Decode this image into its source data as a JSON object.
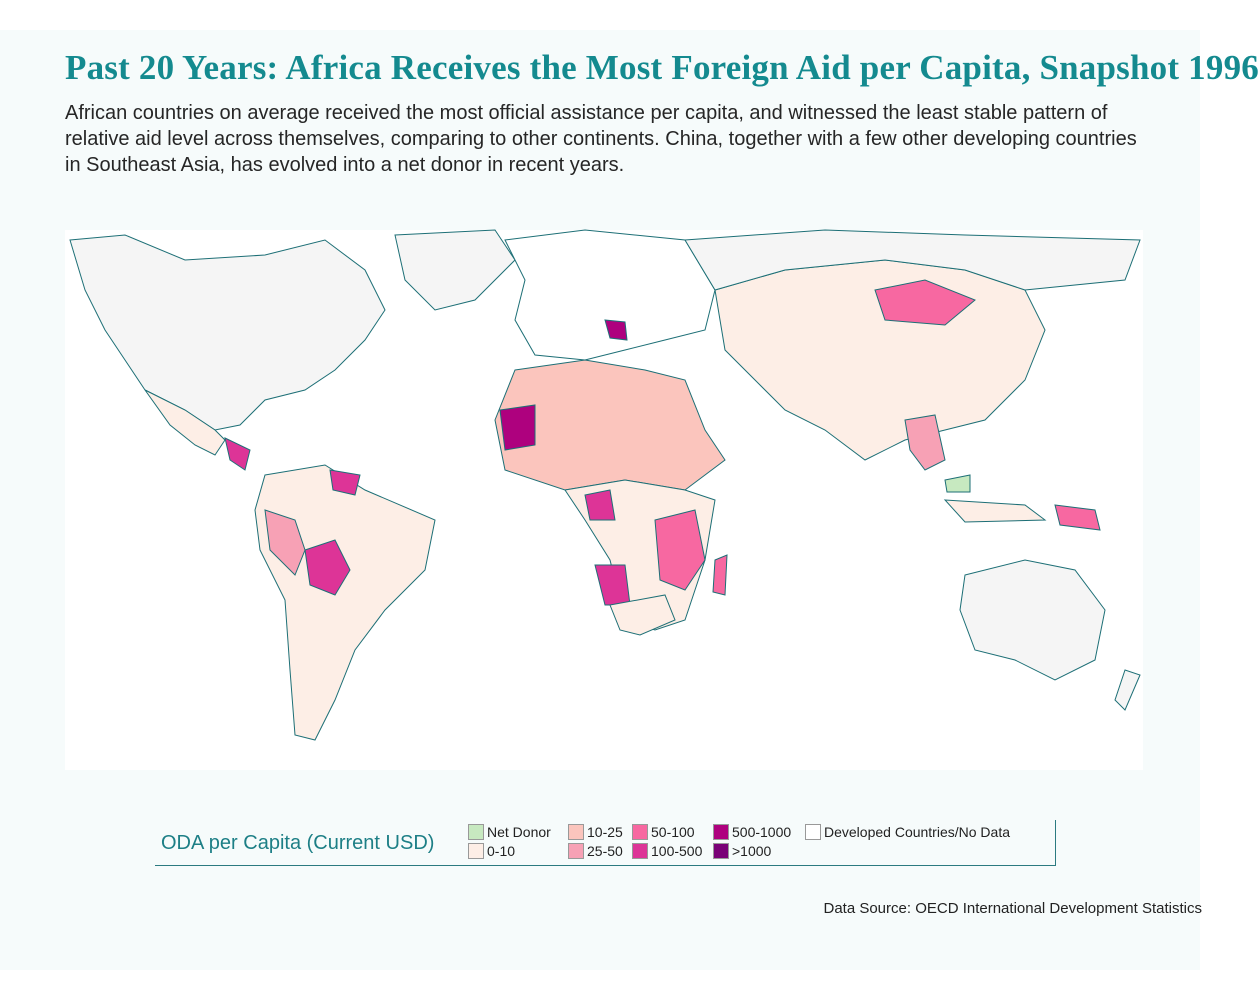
{
  "header": {
    "title": "Past 20 Years: Africa Receives the Most Foreign Aid per Capita, Snapshot 1996",
    "subtitle": "African countries on average received the most official assistance per capita, and witnessed the least stable pattern of relative aid level across themselves, comparing to other continents. China, together with a few other developing countries in Southeast Asia, has evolved into a net donor in recent years."
  },
  "legend": {
    "title": "ODA per Capita (Current USD)",
    "items": [
      {
        "label": "Net Donor",
        "color": "#c7e9c0"
      },
      {
        "label": "0-10",
        "color": "#fdeee6"
      },
      {
        "label": "10-25",
        "color": "#fbc5bd"
      },
      {
        "label": "25-50",
        "color": "#f7a1b5"
      },
      {
        "label": "50-100",
        "color": "#f768a1"
      },
      {
        "label": "100-500",
        "color": "#dd3497"
      },
      {
        "label": "500-1000",
        "color": "#ae017e"
      },
      {
        "label": ">1000",
        "color": "#7a0177"
      },
      {
        "label": "Developed Countries/No Data",
        "color": "#ffffff"
      }
    ]
  },
  "source": "Data Source: OECD International Development Statistics"
}
